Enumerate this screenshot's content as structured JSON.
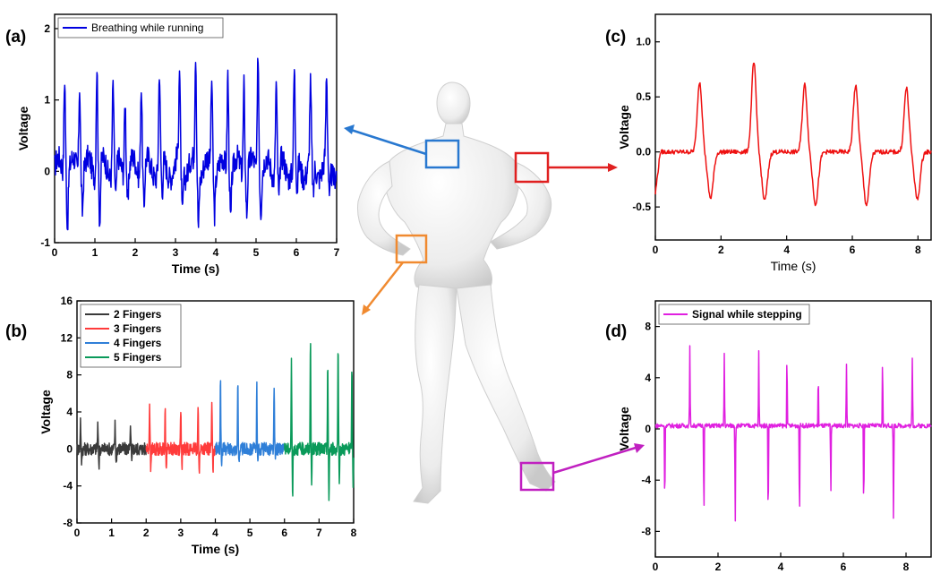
{
  "panel_labels": {
    "a": "(a)",
    "b": "(b)",
    "c": "(c)",
    "d": "(d)"
  },
  "chart_data": [
    {
      "id": "a",
      "type": "line",
      "ylabel": "Voltage",
      "xlabel": "Time (s)",
      "xlim": [
        0,
        7
      ],
      "ylim": [
        -1,
        2.2
      ],
      "x_ticks": [
        0,
        1,
        2,
        3,
        4,
        5,
        6,
        7
      ],
      "y_ticks": [
        -1,
        0,
        1,
        2
      ],
      "legend": "top-left",
      "series": [
        {
          "name": "Breathing while running",
          "color": "#0000e0",
          "peaks_x": [
            0.25,
            0.62,
            1.05,
            1.45,
            1.75,
            2.15,
            2.6,
            3.1,
            3.5,
            3.9,
            4.3,
            4.7,
            5.05,
            5.5,
            5.95,
            6.35,
            6.75
          ],
          "peaks_y": [
            1.4,
            1.3,
            1.55,
            1.25,
            1.1,
            1.3,
            1.35,
            1.3,
            1.6,
            1.3,
            1.45,
            1.3,
            1.75,
            1.3,
            1.3,
            1.05,
            1.2
          ],
          "troughs_y": [
            -0.72,
            -0.5,
            -0.78,
            -0.5,
            -0.45,
            -0.55,
            -0.5,
            -0.6,
            -0.7,
            -0.5,
            -0.6,
            -0.55,
            -0.5,
            -0.5,
            -0.45,
            -0.5,
            -0.5
          ]
        }
      ]
    },
    {
      "id": "b",
      "type": "line",
      "ylabel": "Voltage",
      "xlabel": "Time (s)",
      "xlim": [
        0,
        8
      ],
      "ylim": [
        -8,
        16
      ],
      "x_ticks": [
        0,
        1,
        2,
        3,
        4,
        5,
        6,
        7,
        8
      ],
      "y_ticks": [
        -8,
        -4,
        0,
        4,
        8,
        12,
        16
      ],
      "legend": "top-left",
      "series": [
        {
          "name": "2 Fingers",
          "color": "#3a3a3a",
          "range": [
            0,
            2
          ],
          "peaks_x": [
            0.1,
            0.6,
            1.1,
            1.55
          ],
          "peaks_y": [
            3.2,
            2.5,
            2.6,
            2.4
          ],
          "troughs_y": [
            -1.6,
            -1.8,
            -1.7,
            -1.6
          ]
        },
        {
          "name": "3 Fingers",
          "color": "#ff3b3b",
          "range": [
            2,
            4
          ],
          "peaks_x": [
            2.1,
            2.55,
            3.0,
            3.5,
            3.9
          ],
          "peaks_y": [
            5.0,
            4.1,
            4.6,
            5.1,
            4.8
          ],
          "troughs_y": [
            -2.4,
            -2.0,
            -2.2,
            -3.0,
            -2.0
          ]
        },
        {
          "name": "4 Fingers",
          "color": "#2f7fd8",
          "range": [
            4,
            6
          ],
          "peaks_x": [
            4.15,
            4.65,
            5.2,
            5.7
          ],
          "peaks_y": [
            7.6,
            7.1,
            6.9,
            6.8
          ],
          "troughs_y": [
            -1.5,
            -1.2,
            -1.0,
            -1.1
          ]
        },
        {
          "name": "5 Fingers",
          "color": "#0a9a5a",
          "range": [
            6,
            8
          ],
          "peaks_x": [
            6.2,
            6.75,
            7.25,
            7.55,
            7.95
          ],
          "peaks_y": [
            9.3,
            12.0,
            9.2,
            11.0,
            8.8
          ],
          "troughs_y": [
            -4.8,
            -3.8,
            -5.6,
            -4.4,
            -3.6
          ]
        }
      ]
    },
    {
      "id": "c",
      "type": "line",
      "ylabel": "Voltage",
      "xlabel": "Time (s)",
      "xlim": [
        0,
        8.4
      ],
      "ylim": [
        -0.8,
        1.25
      ],
      "x_ticks": [
        0,
        2,
        4,
        6,
        8
      ],
      "y_ticks": [
        -0.5,
        0.0,
        0.5,
        1.0
      ],
      "y_tick_labels": [
        "-0.5",
        "0.0",
        "0.5",
        "1.0"
      ],
      "series": [
        {
          "name": "",
          "color": "#ee1111",
          "peaks_x": [
            1.35,
            3.0,
            4.55,
            6.1,
            7.65
          ],
          "peaks_y": [
            0.64,
            0.81,
            0.61,
            0.6,
            0.58
          ],
          "troughs_y": [
            -0.42,
            -0.44,
            -0.47,
            -0.48,
            -0.43
          ]
        }
      ]
    },
    {
      "id": "d",
      "type": "line",
      "ylabel": "Voltage",
      "xlabel": "Time (s)",
      "xlim": [
        0,
        8.8
      ],
      "ylim": [
        -10,
        10
      ],
      "x_ticks": [
        0,
        2,
        4,
        6,
        8
      ],
      "y_ticks": [
        -8,
        -4,
        0,
        4,
        8
      ],
      "legend": "top-left",
      "series": [
        {
          "name": "Signal while stepping",
          "color": "#e020e0",
          "spikes_x": [
            0.3,
            1.1,
            1.55,
            2.2,
            2.55,
            3.3,
            3.6,
            4.2,
            4.6,
            5.2,
            5.6,
            6.1,
            6.65,
            7.25,
            7.6,
            8.2
          ],
          "spikes_y": [
            -7.0,
            6.5,
            -7.8,
            5.9,
            -8.0,
            6.1,
            -8.3,
            6.7,
            -8.3,
            4.9,
            -5.6,
            5.4,
            -7.2,
            6.2,
            -8.1,
            5.9
          ]
        }
      ]
    }
  ]
}
